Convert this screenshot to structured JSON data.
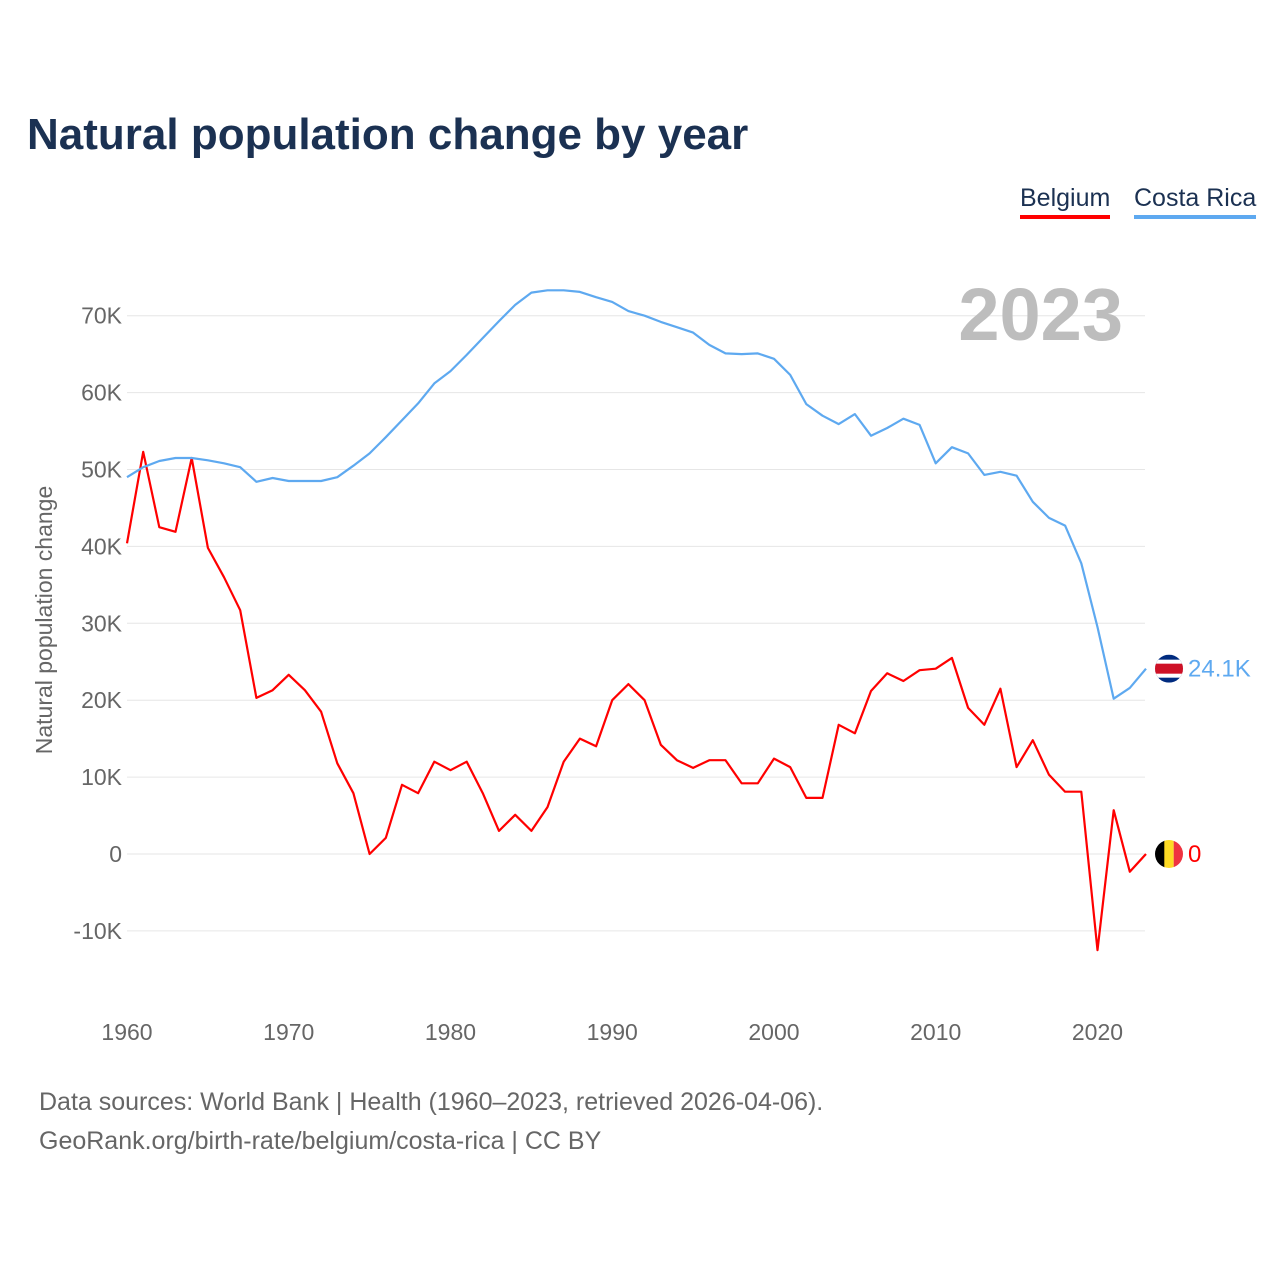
{
  "title": "Natural population change by year",
  "year_watermark": "2023",
  "footer": {
    "sources": "Data sources: World Bank | Health (1960–2023, retrieved 2026-04-06).",
    "link": "GeoRank.org/birth-rate/belgium/costa-rica | CC BY"
  },
  "chart_data": {
    "type": "line",
    "title": "Natural population change by year",
    "xlabel": "",
    "ylabel": "Natural population change",
    "xlim": [
      1960,
      2023
    ],
    "ylim": [
      -15000,
      75000
    ],
    "x_ticks": [
      1960,
      1970,
      1980,
      1990,
      2000,
      2010,
      2020
    ],
    "y_ticks": [
      -10000,
      0,
      10000,
      20000,
      30000,
      40000,
      50000,
      60000,
      70000
    ],
    "y_tick_labels": [
      "-10K",
      "0",
      "10K",
      "20K",
      "30K",
      "40K",
      "50K",
      "60K",
      "70K"
    ],
    "grid": true,
    "legend_position": "top-right",
    "x_start": 1960,
    "series": [
      {
        "name": "Belgium",
        "color": "#ff0000",
        "end_label": "0",
        "flag": "belgium-flag",
        "values": [
          40400,
          52300,
          42500,
          41900,
          51500,
          39800,
          36000,
          31700,
          20300,
          21300,
          23300,
          21300,
          18500,
          11800,
          7900,
          0,
          2100,
          9000,
          7900,
          12000,
          10900,
          12000,
          7900,
          3000,
          5100,
          3000,
          6100,
          12000,
          15000,
          14000,
          20000,
          22100,
          20000,
          14200,
          12200,
          11200,
          12200,
          12200,
          9200,
          9200,
          12400,
          11300,
          7300,
          7300,
          16800,
          15700,
          21200,
          23500,
          22500,
          23900,
          24100,
          25500,
          19000,
          16800,
          21500,
          11300,
          14800,
          10300,
          8100,
          8100,
          -12500,
          5700,
          -2300,
          0
        ]
      },
      {
        "name": "Costa Rica",
        "color": "#5ea9f0",
        "end_label": "24.1K",
        "flag": "costa-rica-flag",
        "values": [
          49000,
          50300,
          51100,
          51500,
          51500,
          51200,
          50800,
          50300,
          48400,
          48900,
          48500,
          48500,
          48500,
          49000,
          50500,
          52100,
          54200,
          56400,
          58600,
          61200,
          62800,
          64900,
          67100,
          69300,
          71400,
          73000,
          73300,
          73300,
          73100,
          72400,
          71800,
          70600,
          70000,
          69200,
          68500,
          67800,
          66200,
          65100,
          65000,
          65100,
          64400,
          62300,
          58500,
          57000,
          55900,
          57200,
          54400,
          55400,
          56600,
          55800,
          50800,
          52900,
          52100,
          49300,
          49700,
          49200,
          45800,
          43700,
          42700,
          37800,
          29500,
          20200,
          21600,
          24100
        ]
      }
    ]
  }
}
